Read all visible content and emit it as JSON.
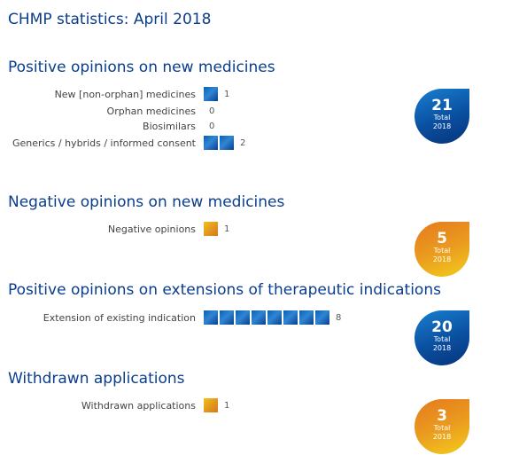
{
  "page_title": "CHMP statistics: April 2018",
  "chart_data": [
    {
      "type": "bar",
      "title": "Positive opinions on new medicines",
      "color": "#0a5fb5",
      "categories": [
        "New [non-orphan] medicines",
        "Orphan medicines",
        "Biosimilars",
        "Generics / hybrids / informed consent"
      ],
      "values": [
        1,
        0,
        0,
        2
      ],
      "total": {
        "value": "21",
        "label": "Total",
        "year": "2018"
      }
    },
    {
      "type": "bar",
      "title": "Negative opinions on new medicines",
      "color": "#e39a1e",
      "categories": [
        "Negative opinions"
      ],
      "values": [
        1
      ],
      "total": {
        "value": "5",
        "label": "Total",
        "year": "2018"
      }
    },
    {
      "type": "bar",
      "title": "Positive opinions on extensions of therapeutic indications",
      "color": "#0a5fb5",
      "categories": [
        "Extension of existing indication"
      ],
      "values": [
        8
      ],
      "total": {
        "value": "20",
        "label": "Total",
        "year": "2018"
      }
    },
    {
      "type": "bar",
      "title": "Withdrawn applications",
      "color": "#e39a1e",
      "categories": [
        "Withdrawn applications"
      ],
      "values": [
        1
      ],
      "total": {
        "value": "3",
        "label": "Total",
        "year": "2018"
      }
    }
  ]
}
